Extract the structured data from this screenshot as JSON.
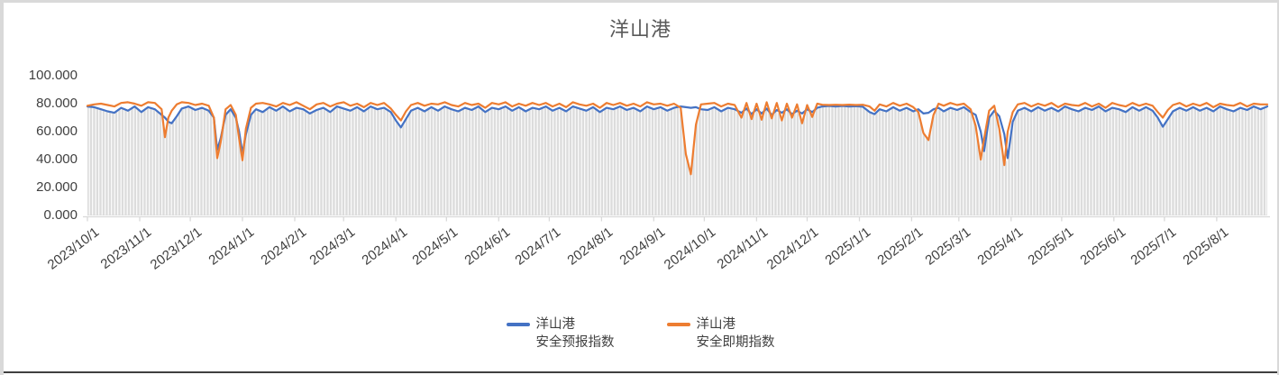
{
  "chart_data": {
    "type": "line",
    "title": "洋山港",
    "ylabel": "",
    "xlabel": "",
    "ylim": [
      0,
      100
    ],
    "grid": false,
    "legend_position": "bottom",
    "ytick_values": [
      100,
      80,
      60,
      40,
      20,
      0
    ],
    "ytick_labels": [
      "100.000",
      "80.000",
      "60.000",
      "40.000",
      "20.000",
      "0.000"
    ],
    "x_axis": {
      "start_date": "2023/10/1",
      "end_span_days": 700,
      "tick_labels": [
        "2023/10/1",
        "2023/11/1",
        "2023/12/1",
        "2024/1/1",
        "2024/2/1",
        "2024/3/1",
        "2024/4/1",
        "2024/5/1",
        "2024/6/1",
        "2024/7/1",
        "2024/8/1",
        "2024/9/1",
        "2024/10/1",
        "2024/11/1",
        "2024/12/1",
        "2025/1/1",
        "2025/2/1",
        "2025/3/1",
        "2025/4/1",
        "2025/5/1",
        "2025/6/1",
        "2025/7/1",
        "2025/8/1"
      ],
      "tick_days": [
        0,
        31,
        61,
        92,
        123,
        152,
        183,
        213,
        244,
        274,
        305,
        336,
        366,
        397,
        427,
        458,
        489,
        517,
        548,
        578,
        609,
        639,
        670
      ]
    },
    "series": [
      {
        "name": "洋山港 安全预报指数",
        "legend_lines": [
          "洋山港",
          "安全预报指数"
        ],
        "color": "#4472C4"
      },
      {
        "name": "洋山港 安全即期指数",
        "legend_lines": [
          "洋山港",
          "安全即期指数"
        ],
        "color": "#ED7D31"
      }
    ],
    "background_bars": {
      "color": "#DCDCDC",
      "description": "dense daily gray columns filling up to the lower of the two line values"
    },
    "points_format": [
      "day_offset",
      "forecast_index",
      "spot_index"
    ],
    "points": [
      [
        0,
        78,
        78.5
      ],
      [
        4,
        77.5,
        79.5
      ],
      [
        8,
        76,
        80
      ],
      [
        12,
        74.5,
        79
      ],
      [
        16,
        73.5,
        78
      ],
      [
        20,
        77,
        80.5
      ],
      [
        24,
        75,
        81
      ],
      [
        28,
        78,
        80
      ],
      [
        32,
        74,
        78.5
      ],
      [
        36,
        77.5,
        81
      ],
      [
        40,
        76,
        80.5
      ],
      [
        44,
        72,
        76
      ],
      [
        46,
        70,
        56
      ],
      [
        48,
        67,
        70
      ],
      [
        50,
        66,
        75
      ],
      [
        53,
        71,
        79.5
      ],
      [
        56,
        76.5,
        81
      ],
      [
        60,
        78,
        80.5
      ],
      [
        64,
        75.5,
        79
      ],
      [
        68,
        77,
        80
      ],
      [
        72,
        75,
        78.5
      ],
      [
        75,
        70,
        70
      ],
      [
        77,
        47,
        41
      ],
      [
        79,
        55,
        52
      ],
      [
        82,
        72,
        76
      ],
      [
        85,
        76,
        79
      ],
      [
        88,
        70,
        72
      ],
      [
        90,
        60,
        55
      ],
      [
        92,
        44.5,
        39.5
      ],
      [
        94,
        58,
        62
      ],
      [
        97,
        72,
        77
      ],
      [
        100,
        76,
        80
      ],
      [
        104,
        74,
        80.5
      ],
      [
        108,
        77.5,
        79.5
      ],
      [
        112,
        75,
        78
      ],
      [
        116,
        78,
        80.5
      ],
      [
        120,
        74.5,
        79
      ],
      [
        124,
        77,
        81
      ],
      [
        128,
        76,
        78.5
      ],
      [
        132,
        73,
        76
      ],
      [
        136,
        75.5,
        79.5
      ],
      [
        140,
        77,
        80.5
      ],
      [
        144,
        74,
        78
      ],
      [
        148,
        78,
        80
      ],
      [
        152,
        76.5,
        81
      ],
      [
        156,
        75,
        78.5
      ],
      [
        160,
        77.5,
        80
      ],
      [
        164,
        74.5,
        77.5
      ],
      [
        168,
        78,
        80.5
      ],
      [
        172,
        76,
        79
      ],
      [
        176,
        77,
        80.5
      ],
      [
        180,
        74,
        76.5
      ],
      [
        183,
        68,
        72
      ],
      [
        186,
        63,
        68
      ],
      [
        189,
        69,
        74.5
      ],
      [
        192,
        75,
        79
      ],
      [
        196,
        77,
        80.5
      ],
      [
        200,
        74.5,
        78.5
      ],
      [
        204,
        77.5,
        80
      ],
      [
        208,
        75,
        79.5
      ],
      [
        212,
        78,
        81
      ],
      [
        216,
        76,
        79
      ],
      [
        220,
        74.5,
        78
      ],
      [
        224,
        77,
        80.5
      ],
      [
        228,
        75.5,
        79
      ],
      [
        232,
        78,
        80
      ],
      [
        236,
        74,
        77
      ],
      [
        240,
        77,
        80.5
      ],
      [
        244,
        76,
        79.5
      ],
      [
        248,
        78,
        81
      ],
      [
        252,
        75,
        78
      ],
      [
        256,
        77.5,
        80
      ],
      [
        260,
        74.5,
        78.5
      ],
      [
        264,
        77,
        80.5
      ],
      [
        268,
        76,
        79
      ],
      [
        272,
        78,
        80.5
      ],
      [
        276,
        75,
        78
      ],
      [
        280,
        77,
        80
      ],
      [
        284,
        74.5,
        77.5
      ],
      [
        288,
        78,
        81
      ],
      [
        292,
        76.5,
        79.5
      ],
      [
        296,
        75,
        78.5
      ],
      [
        300,
        77.5,
        80
      ],
      [
        304,
        74,
        77
      ],
      [
        308,
        77,
        80.5
      ],
      [
        312,
        76,
        79
      ],
      [
        316,
        78,
        80.5
      ],
      [
        320,
        75.5,
        78.5
      ],
      [
        324,
        77,
        80
      ],
      [
        328,
        74.5,
        78
      ],
      [
        332,
        78,
        81
      ],
      [
        336,
        76,
        79.5
      ],
      [
        340,
        77.5,
        80
      ],
      [
        344,
        75,
        78.5
      ],
      [
        348,
        77,
        80
      ],
      [
        352,
        78,
        77
      ],
      [
        355,
        77.5,
        44
      ],
      [
        358,
        77,
        29.5
      ],
      [
        361,
        77.5,
        65
      ],
      [
        364,
        76,
        79.5
      ],
      [
        368,
        75.5,
        80
      ],
      [
        372,
        77.5,
        80.5
      ],
      [
        376,
        74.5,
        78
      ],
      [
        380,
        77,
        80
      ],
      [
        384,
        76,
        79
      ],
      [
        388,
        73.5,
        70
      ],
      [
        391,
        76.5,
        80.5
      ],
      [
        394,
        72.5,
        69
      ],
      [
        397,
        76,
        80
      ],
      [
        400,
        73,
        68.5
      ],
      [
        403,
        76.5,
        81
      ],
      [
        406,
        72,
        69.5
      ],
      [
        409,
        75.5,
        80.5
      ],
      [
        412,
        73.5,
        68
      ],
      [
        415,
        76,
        80
      ],
      [
        418,
        72.5,
        70
      ],
      [
        421,
        75,
        79.5
      ],
      [
        424,
        73,
        66
      ],
      [
        427,
        76,
        79
      ],
      [
        430,
        74,
        70.5
      ],
      [
        433,
        77,
        80
      ],
      [
        436,
        78,
        79.2
      ],
      [
        440,
        78.4,
        79
      ],
      [
        444,
        78,
        79.2
      ],
      [
        448,
        78.4,
        79
      ],
      [
        452,
        78,
        79.3
      ],
      [
        456,
        78.2,
        79
      ],
      [
        460,
        77.8,
        79.2
      ],
      [
        464,
        74,
        78
      ],
      [
        467,
        72.5,
        75
      ],
      [
        470,
        76,
        79.5
      ],
      [
        474,
        74.5,
        78
      ],
      [
        478,
        77.5,
        80.5
      ],
      [
        482,
        75,
        78.5
      ],
      [
        486,
        77,
        80
      ],
      [
        490,
        74.5,
        77.5
      ],
      [
        493,
        76,
        74
      ],
      [
        496,
        73,
        59
      ],
      [
        499,
        73.5,
        54
      ],
      [
        502,
        76,
        72
      ],
      [
        505,
        77,
        80
      ],
      [
        508,
        74.5,
        78.5
      ],
      [
        512,
        77,
        80.5
      ],
      [
        516,
        75.5,
        79
      ],
      [
        520,
        77.5,
        80
      ],
      [
        524,
        74,
        76
      ],
      [
        527,
        72,
        64
      ],
      [
        530,
        60,
        40
      ],
      [
        532,
        46,
        55
      ],
      [
        535,
        70,
        75
      ],
      [
        538,
        75,
        78.5
      ],
      [
        541,
        71,
        62
      ],
      [
        544,
        58,
        36
      ],
      [
        546,
        41,
        60
      ],
      [
        549,
        67,
        74
      ],
      [
        552,
        75,
        79.5
      ],
      [
        556,
        77,
        80.5
      ],
      [
        560,
        74.5,
        78
      ],
      [
        564,
        77.5,
        80
      ],
      [
        568,
        75,
        78.5
      ],
      [
        572,
        77,
        80.5
      ],
      [
        576,
        74.5,
        77.5
      ],
      [
        580,
        78,
        80
      ],
      [
        584,
        76,
        79
      ],
      [
        588,
        74.5,
        78.5
      ],
      [
        592,
        77,
        80.5
      ],
      [
        596,
        75.5,
        78
      ],
      [
        600,
        78,
        80
      ],
      [
        604,
        74.5,
        77
      ],
      [
        608,
        77,
        80.5
      ],
      [
        612,
        76,
        79
      ],
      [
        616,
        74,
        78
      ],
      [
        620,
        77.5,
        80.5
      ],
      [
        624,
        75,
        78.5
      ],
      [
        628,
        77.5,
        80
      ],
      [
        632,
        75,
        78.5
      ],
      [
        635,
        70,
        74
      ],
      [
        638,
        63.5,
        70
      ],
      [
        641,
        69,
        75.5
      ],
      [
        644,
        74.5,
        79
      ],
      [
        648,
        77,
        80.5
      ],
      [
        652,
        75,
        78
      ],
      [
        656,
        77.5,
        80
      ],
      [
        660,
        75,
        78.5
      ],
      [
        664,
        77,
        80.5
      ],
      [
        668,
        74.5,
        77.5
      ],
      [
        672,
        78,
        80
      ],
      [
        676,
        76,
        79
      ],
      [
        680,
        74.5,
        78.5
      ],
      [
        684,
        77,
        80.5
      ],
      [
        688,
        75.5,
        78
      ],
      [
        692,
        78,
        80
      ],
      [
        696,
        76,
        79.5
      ],
      [
        700,
        78,
        79.5
      ]
    ]
  },
  "style": {
    "title_color": "#595959",
    "axis_label_color": "#404040",
    "axis_line_color": "#D9D9D9",
    "forecast_color": "#4472C4",
    "spot_color": "#ED7D31",
    "bar_color": "#DCDCDC"
  }
}
